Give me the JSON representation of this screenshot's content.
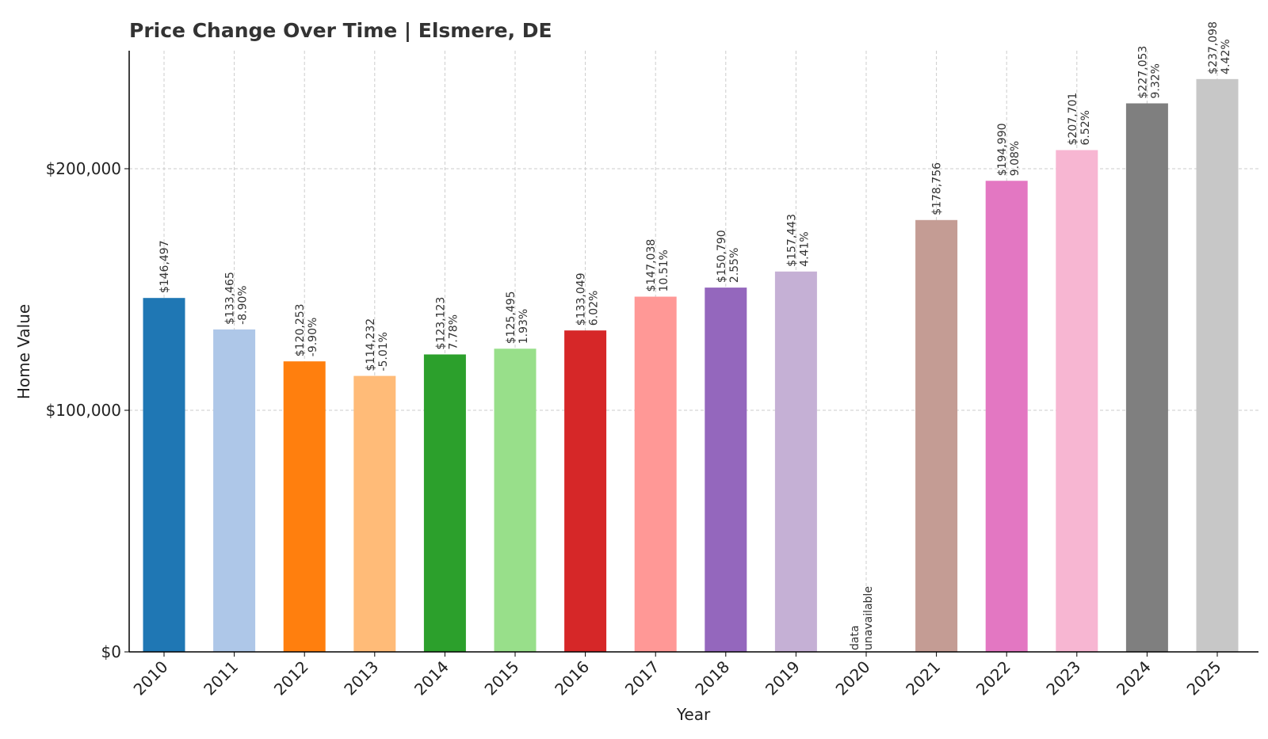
{
  "chart_data": {
    "type": "bar",
    "title": "Price Change Over Time | Elsmere, DE",
    "xlabel": "Year",
    "ylabel": "Home Value",
    "ylim": [
      0,
      250000
    ],
    "grid": true,
    "yticks": [
      {
        "value": 0,
        "label": "$0"
      },
      {
        "value": 100000,
        "label": "$100,000"
      },
      {
        "value": 200000,
        "label": "$200,000"
      }
    ],
    "categories": [
      "2010",
      "2011",
      "2012",
      "2013",
      "2014",
      "2015",
      "2016",
      "2017",
      "2018",
      "2019",
      "2020",
      "2021",
      "2022",
      "2023",
      "2024",
      "2025"
    ],
    "values": [
      146497,
      133465,
      120253,
      114232,
      123123,
      125495,
      133049,
      147038,
      150790,
      157443,
      null,
      178756,
      194990,
      207701,
      227053,
      237098
    ],
    "value_labels": [
      "$146,497",
      "$133,465",
      "$120,253",
      "$114,232",
      "$123,123",
      "$125,495",
      "$133,049",
      "$147,038",
      "$150,790",
      "$157,443",
      "",
      "$178,756",
      "$194,990",
      "$207,701",
      "$227,053",
      "$237,098"
    ],
    "change_labels": [
      "",
      "-8.90%",
      "-9.90%",
      "-5.01%",
      "7.78%",
      "1.93%",
      "6.02%",
      "10.51%",
      "2.55%",
      "4.41%",
      "",
      "",
      "9.08%",
      "6.52%",
      "9.32%",
      "4.42%"
    ],
    "missing_label": [
      "data",
      "unavailable"
    ],
    "colors": [
      "#1f77b4",
      "#aec7e8",
      "#ff7f0e",
      "#ffbb78",
      "#2ca02c",
      "#98df8a",
      "#d62728",
      "#ff9896",
      "#9467bd",
      "#c5b0d5",
      "#8c564b",
      "#c49c94",
      "#e377c2",
      "#f7b6d2",
      "#7f7f7f",
      "#c7c7c7"
    ]
  }
}
